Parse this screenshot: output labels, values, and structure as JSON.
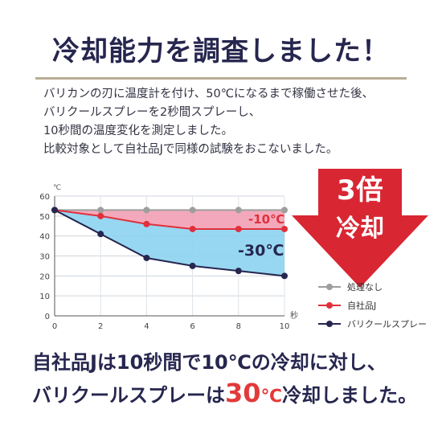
{
  "heading": "冷却能力を調査しました！",
  "intro_lines": [
    "バリカンの刃に温度計を付け、50℃になるまで稼働させた後、",
    "バリクールスプレーを2秒間スプレーし、",
    "10秒間の温度変化を測定しました。",
    "比較対象として自社品Jで同様の試験をおこないました。"
  ],
  "badge": {
    "line1": "3倍",
    "line2": "冷却"
  },
  "colors": {
    "navy": "#26264f",
    "red": "#e0303c",
    "gray": "#9e9e9e",
    "pink_fill": "#f2a0b4",
    "blue_fill": "#8dd3f0",
    "arrow": "#d92633"
  },
  "chart_data": {
    "type": "line",
    "x": [
      0,
      2,
      4,
      6,
      8,
      10
    ],
    "xlabel": "秒",
    "ylabel": "℃",
    "xlim": [
      0,
      10
    ],
    "ylim": [
      0,
      60
    ],
    "x_ticks": [
      "0",
      "2",
      "4",
      "6",
      "8",
      "10"
    ],
    "y_ticks": [
      "0",
      "10",
      "20",
      "30",
      "40",
      "50",
      "60"
    ],
    "grid": true,
    "legend_position": "bottom-right",
    "series": [
      {
        "name": "処理なし",
        "values": [
          53,
          53,
          53,
          53,
          53,
          53
        ]
      },
      {
        "name": "自社品J",
        "values": [
          53,
          50,
          46,
          43.5,
          43.5,
          43.5
        ]
      },
      {
        "name": "バリクールスプレー",
        "values": [
          53,
          41,
          29,
          25,
          22.5,
          20
        ]
      }
    ],
    "annotations": [
      "-10℃",
      "-30℃"
    ]
  },
  "summary": {
    "line1": "自社品Jは10秒間で10℃の冷却に対し、",
    "line2_pre": "バリクールスプレーは",
    "line2_num": "30",
    "line2_unit": "℃",
    "line2_post": "冷却しました。"
  }
}
